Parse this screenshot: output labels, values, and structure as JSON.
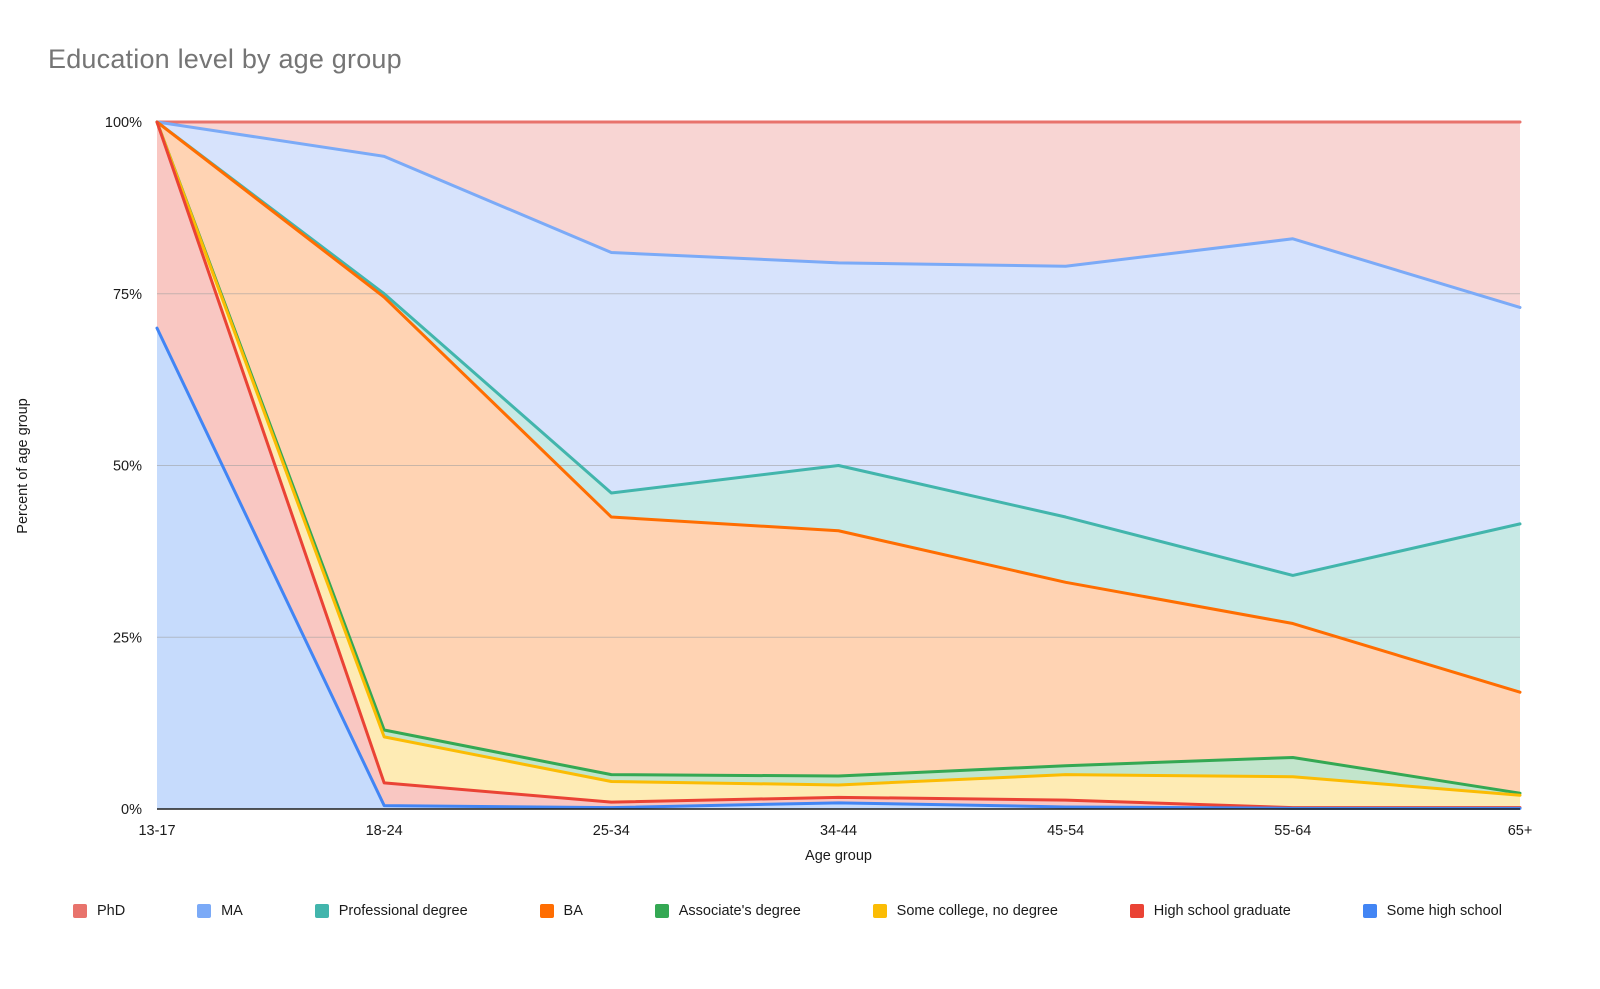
{
  "chart_data": {
    "type": "area",
    "title": "Education level by age group",
    "xlabel": "Age group",
    "ylabel": "Percent of age group",
    "categories": [
      "13-17",
      "18-24",
      "25-34",
      "34-44",
      "45-54",
      "55-64",
      "65+"
    ],
    "yticks": [
      {
        "label": "0%",
        "value": 0
      },
      {
        "label": "25%",
        "value": 25
      },
      {
        "label": "50%",
        "value": 50
      },
      {
        "label": "75%",
        "value": 75
      },
      {
        "label": "100%",
        "value": 100
      }
    ],
    "gridline_values": [
      25,
      50,
      75
    ],
    "ylim": [
      0,
      100
    ],
    "stacked": false,
    "grid": true,
    "legend_position": "bottom",
    "title_color": "#757575",
    "axis_text_color": "#1a1a1a",
    "gridline_color": "#9e9e9e",
    "baseline_color": "#1f1f1f",
    "series": [
      {
        "name": "PhD",
        "color": "#e8736c",
        "fill": "#f8d5d3",
        "values": [
          100,
          100,
          100,
          100,
          100,
          100,
          100
        ]
      },
      {
        "name": "MA",
        "color": "#7baaf7",
        "fill": "#d7e3fc",
        "values": [
          100,
          95,
          81,
          79.5,
          79,
          83,
          73
        ]
      },
      {
        "name": "Professional degree",
        "color": "#42b5ac",
        "fill": "#c7e9e5",
        "values": [
          100,
          75,
          46,
          50,
          42.5,
          34,
          41.5
        ]
      },
      {
        "name": "BA",
        "color": "#ff6d01",
        "fill": "#ffd3b3",
        "values": [
          100,
          74.5,
          42.5,
          40.5,
          33,
          27,
          17
        ]
      },
      {
        "name": "Associate's degree",
        "color": "#34a853",
        "fill": "#c2e5cc",
        "values": [
          100,
          11.5,
          5,
          4.8,
          6.3,
          7.5,
          2.3
        ]
      },
      {
        "name": "Some college, no degree",
        "color": "#fbbc04",
        "fill": "#feebb4",
        "values": [
          100,
          10.5,
          4,
          3.5,
          5,
          4.7,
          2
        ]
      },
      {
        "name": "High school graduate",
        "color": "#ea4335",
        "fill": "#f9c7c2",
        "values": [
          100,
          3.8,
          1,
          1.7,
          1.3,
          0.2,
          0.2
        ]
      },
      {
        "name": "Some high school",
        "color": "#4285f4",
        "fill": "#c6dbfc",
        "values": [
          70,
          0.5,
          0.2,
          0.9,
          0.3,
          0.1,
          0.1
        ]
      }
    ]
  }
}
